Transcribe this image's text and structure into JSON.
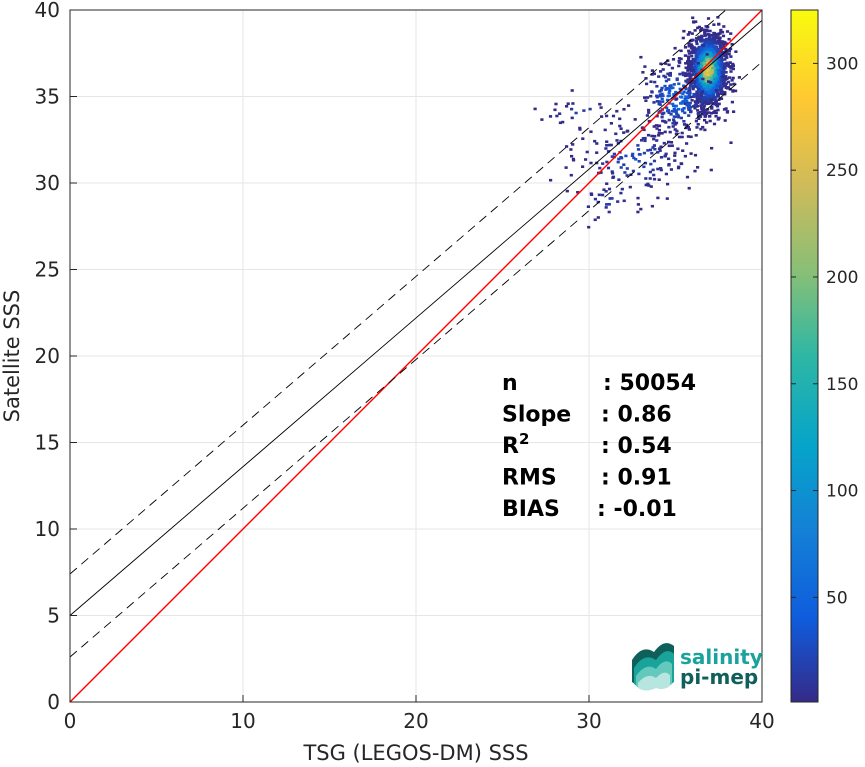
{
  "chart_data": {
    "type": "scatter",
    "subtype": "2d-density-histogram",
    "xlabel": "TSG (LEGOS-DM) SSS",
    "ylabel": "Satellite SSS",
    "xlim": [
      0,
      40
    ],
    "ylim": [
      0,
      40
    ],
    "x_ticks": [
      "0",
      "10",
      "20",
      "30",
      "40"
    ],
    "y_ticks": [
      "0",
      "5",
      "10",
      "15",
      "20",
      "25",
      "30",
      "35",
      "40"
    ],
    "grid": true,
    "colorbar": {
      "colormap": "parula",
      "range": [
        1,
        325
      ],
      "ticks": [
        "50",
        "100",
        "150",
        "200",
        "250",
        "300"
      ]
    },
    "lines": [
      {
        "name": "1:1",
        "color": "#ff0000",
        "style": "solid",
        "points": [
          [
            0,
            0
          ],
          [
            40,
            40
          ]
        ]
      },
      {
        "name": "fit",
        "color": "#000000",
        "style": "solid",
        "points": [
          [
            0,
            5.0
          ],
          [
            40,
            39.4
          ]
        ]
      },
      {
        "name": "fit + std",
        "color": "#000000",
        "style": "dashed",
        "points": [
          [
            0,
            7.4
          ],
          [
            40,
            41.8
          ]
        ]
      },
      {
        "name": "fit - std",
        "color": "#000000",
        "style": "dashed",
        "points": [
          [
            0,
            2.6
          ],
          [
            40,
            37.0
          ]
        ]
      }
    ],
    "density_clusters": [
      {
        "cx": 36.8,
        "cy": 36.6,
        "sx": 0.55,
        "sy": 1.1,
        "n": 1400,
        "peak": 320
      },
      {
        "cx": 35.0,
        "cy": 35.0,
        "sx": 1.1,
        "sy": 1.2,
        "n": 260,
        "peak": 60
      },
      {
        "cx": 32.5,
        "cy": 31.5,
        "sx": 1.8,
        "sy": 1.1,
        "n": 160,
        "peak": 30
      },
      {
        "cx": 29.5,
        "cy": 34.2,
        "sx": 1.4,
        "sy": 0.25,
        "n": 25,
        "peak": 20
      },
      {
        "cx": 31.0,
        "cy": 29.0,
        "sx": 0.9,
        "sy": 0.6,
        "n": 25,
        "peak": 18
      }
    ],
    "stats": [
      {
        "label": "n",
        "value": ": 50054"
      },
      {
        "label": "Slope",
        "value": ": 0.86"
      },
      {
        "label": "R",
        "sup": "2",
        "value": ": 0.54"
      },
      {
        "label": "RMS",
        "value": ": 0.91"
      },
      {
        "label": "BIAS",
        "value": ": -0.01"
      }
    ]
  },
  "logo": {
    "line1": "salinity",
    "line2": "pi-mep",
    "colors": {
      "teal": "#1aa39a",
      "dark": "#0f5f5a"
    }
  }
}
